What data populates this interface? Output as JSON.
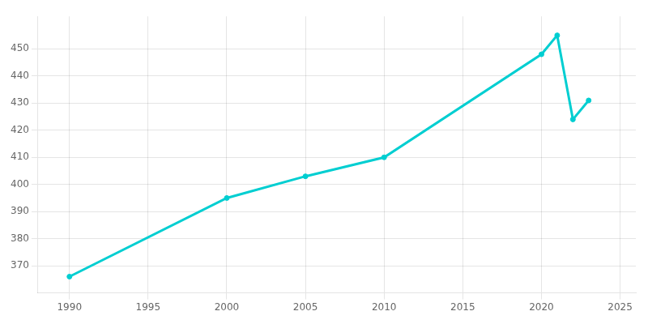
{
  "chart_data": {
    "type": "line",
    "x": [
      1990,
      2000,
      2005,
      2010,
      2020,
      2021,
      2022,
      2023
    ],
    "values": [
      366,
      395,
      403,
      410,
      448,
      455,
      424,
      431
    ],
    "color": "#00CED1",
    "marker": "circle",
    "xlim": [
      1988,
      2026
    ],
    "xticks": [
      1990,
      1995,
      2000,
      2005,
      2010,
      2015,
      2020,
      2025
    ],
    "ylim": [
      360,
      462
    ],
    "yticks": [
      370,
      380,
      390,
      400,
      410,
      420,
      430,
      440,
      450
    ],
    "grid": true
  }
}
